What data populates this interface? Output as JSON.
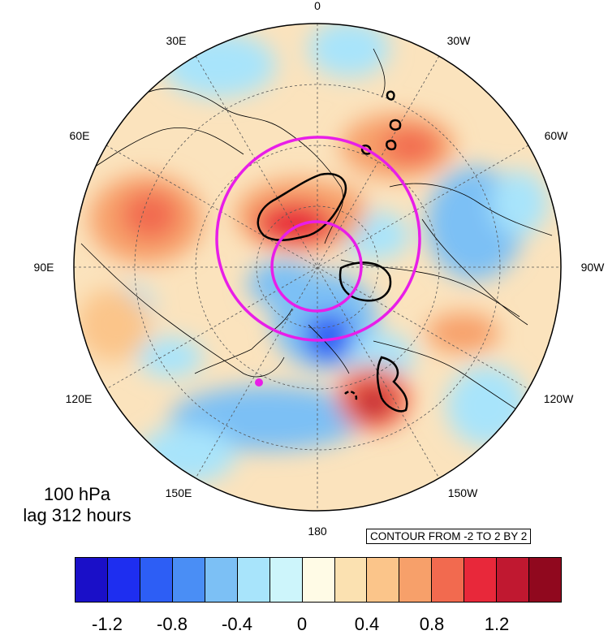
{
  "map": {
    "projection": "north polar stereographic",
    "lon_labels": [
      "0",
      "30W",
      "60W",
      "90W",
      "120W",
      "150W",
      "180",
      "150E",
      "120E",
      "90E",
      "60E",
      "30E"
    ],
    "contour_note": "CONTOUR FROM -2 TO 2 BY 2",
    "info": {
      "level": "100 hPa",
      "lag": "lag 312 hours"
    },
    "colorbar": {
      "colors": [
        "#1a0fc8",
        "#1e2ef0",
        "#2d5ef5",
        "#4a8ef5",
        "#7cc0f5",
        "#a8e4fb",
        "#cdf5fb",
        "#fffbe6",
        "#fbe1b1",
        "#fbc58a",
        "#f7a06a",
        "#f26a4f",
        "#e8283a",
        "#c01830",
        "#90081e"
      ],
      "tick_labels": [
        "-1.2",
        "-0.8",
        "-0.4",
        "0",
        "0.4",
        "0.8",
        "1.2"
      ]
    },
    "magenta_rings": 2,
    "marker_color": "#e81ee8"
  }
}
